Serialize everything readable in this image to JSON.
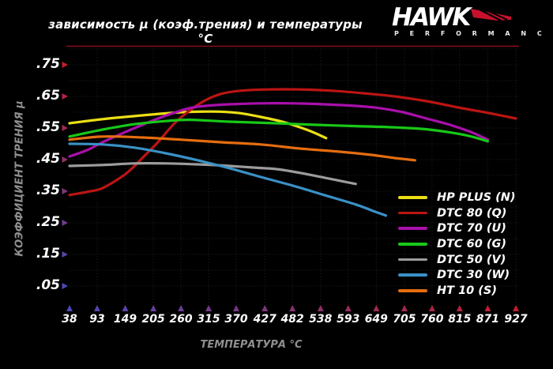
{
  "header": {
    "title": "зависимость µ (коэф.трения) и температуры °C",
    "logo": {
      "brand": "HAWK",
      "subbrand": "P E R F O R M A N C E",
      "wing_color": "#c8102e"
    }
  },
  "chart_data": {
    "type": "line",
    "title": "зависимость µ (коэф.трения) и температуры °C",
    "xlabel": "ТЕМПЕРАТУРА °C",
    "ylabel": "КОЭФФИЦИЕНТ ТРЕНИЯ µ",
    "xlim": [
      38,
      927
    ],
    "ylim": [
      0,
      0.8
    ],
    "grid": true,
    "legend_position": "lower-right",
    "x_ticks": [
      38,
      93,
      149,
      205,
      260,
      315,
      370,
      427,
      482,
      538,
      593,
      649,
      705,
      760,
      815,
      871,
      927
    ],
    "y_ticks": [
      {
        "label": ".75",
        "value": 0.75
      },
      {
        "label": ".65",
        "value": 0.65
      },
      {
        "label": ".55",
        "value": 0.55
      },
      {
        "label": ".45",
        "value": 0.45
      },
      {
        "label": ".35",
        "value": 0.35
      },
      {
        "label": ".25",
        "value": 0.25
      },
      {
        "label": ".15",
        "value": 0.15
      },
      {
        "label": ".05",
        "value": 0.05
      }
    ],
    "series": [
      {
        "name": "HP PLUS (N)",
        "color": "#ecdf15",
        "points": [
          [
            38,
            0.565
          ],
          [
            104,
            0.578
          ],
          [
            183,
            0.59
          ],
          [
            261,
            0.6
          ],
          [
            324,
            0.602
          ],
          [
            372,
            0.598
          ],
          [
            419,
            0.585
          ],
          [
            466,
            0.568
          ],
          [
            513,
            0.543
          ],
          [
            549,
            0.518
          ]
        ]
      },
      {
        "name": "DTC 80 (Q)",
        "color": "#bb1513",
        "points": [
          [
            38,
            0.338
          ],
          [
            73,
            0.348
          ],
          [
            104,
            0.36
          ],
          [
            150,
            0.405
          ],
          [
            183,
            0.455
          ],
          [
            214,
            0.505
          ],
          [
            246,
            0.563
          ],
          [
            277,
            0.605
          ],
          [
            309,
            0.638
          ],
          [
            340,
            0.658
          ],
          [
            379,
            0.668
          ],
          [
            434,
            0.672
          ],
          [
            497,
            0.672
          ],
          [
            560,
            0.668
          ],
          [
            623,
            0.66
          ],
          [
            686,
            0.65
          ],
          [
            749,
            0.635
          ],
          [
            812,
            0.615
          ],
          [
            871,
            0.598
          ],
          [
            927,
            0.58
          ]
        ]
      },
      {
        "name": "DTC 70 (U)",
        "color": "#a910ab",
        "points": [
          [
            38,
            0.46
          ],
          [
            73,
            0.48
          ],
          [
            104,
            0.505
          ],
          [
            150,
            0.538
          ],
          [
            183,
            0.56
          ],
          [
            214,
            0.58
          ],
          [
            246,
            0.598
          ],
          [
            277,
            0.613
          ],
          [
            309,
            0.62
          ],
          [
            356,
            0.625
          ],
          [
            419,
            0.628
          ],
          [
            482,
            0.628
          ],
          [
            545,
            0.625
          ],
          [
            608,
            0.62
          ],
          [
            655,
            0.613
          ],
          [
            702,
            0.6
          ],
          [
            749,
            0.58
          ],
          [
            796,
            0.56
          ],
          [
            836,
            0.538
          ],
          [
            871,
            0.513
          ]
        ]
      },
      {
        "name": "DTC 60 (G)",
        "color": "#18c818",
        "points": [
          [
            38,
            0.523
          ],
          [
            104,
            0.545
          ],
          [
            167,
            0.562
          ],
          [
            230,
            0.572
          ],
          [
            277,
            0.576
          ],
          [
            356,
            0.57
          ],
          [
            450,
            0.565
          ],
          [
            529,
            0.56
          ],
          [
            608,
            0.556
          ],
          [
            686,
            0.552
          ],
          [
            749,
            0.546
          ],
          [
            796,
            0.536
          ],
          [
            836,
            0.524
          ],
          [
            871,
            0.508
          ]
        ]
      },
      {
        "name": "DTC 50 (V)",
        "color": "#9c9c9c",
        "points": [
          [
            38,
            0.43
          ],
          [
            104,
            0.433
          ],
          [
            167,
            0.438
          ],
          [
            230,
            0.438
          ],
          [
            293,
            0.435
          ],
          [
            356,
            0.43
          ],
          [
            403,
            0.425
          ],
          [
            450,
            0.42
          ],
          [
            497,
            0.408
          ],
          [
            545,
            0.393
          ],
          [
            592,
            0.378
          ],
          [
            608,
            0.373
          ]
        ]
      },
      {
        "name": "DTC 30 (W)",
        "color": "#3a91c6",
        "points": [
          [
            38,
            0.5
          ],
          [
            104,
            0.498
          ],
          [
            167,
            0.488
          ],
          [
            230,
            0.47
          ],
          [
            293,
            0.448
          ],
          [
            356,
            0.423
          ],
          [
            419,
            0.395
          ],
          [
            482,
            0.368
          ],
          [
            545,
            0.338
          ],
          [
            608,
            0.308
          ],
          [
            647,
            0.285
          ],
          [
            668,
            0.273
          ]
        ]
      },
      {
        "name": "HT 10 (S)",
        "color": "#e56d0f",
        "points": [
          [
            38,
            0.513
          ],
          [
            104,
            0.523
          ],
          [
            183,
            0.52
          ],
          [
            261,
            0.513
          ],
          [
            340,
            0.505
          ],
          [
            419,
            0.498
          ],
          [
            497,
            0.485
          ],
          [
            576,
            0.475
          ],
          [
            639,
            0.465
          ],
          [
            686,
            0.455
          ],
          [
            726,
            0.448
          ]
        ]
      }
    ]
  },
  "style": {
    "background": "#000000",
    "grid_color": "#242424",
    "axis_hot": "#c41e2c",
    "axis_cold": "#4c48b8",
    "top_border": "#8a1119",
    "tick_text": "#ffffff",
    "label_text": "#8f8f8f"
  }
}
